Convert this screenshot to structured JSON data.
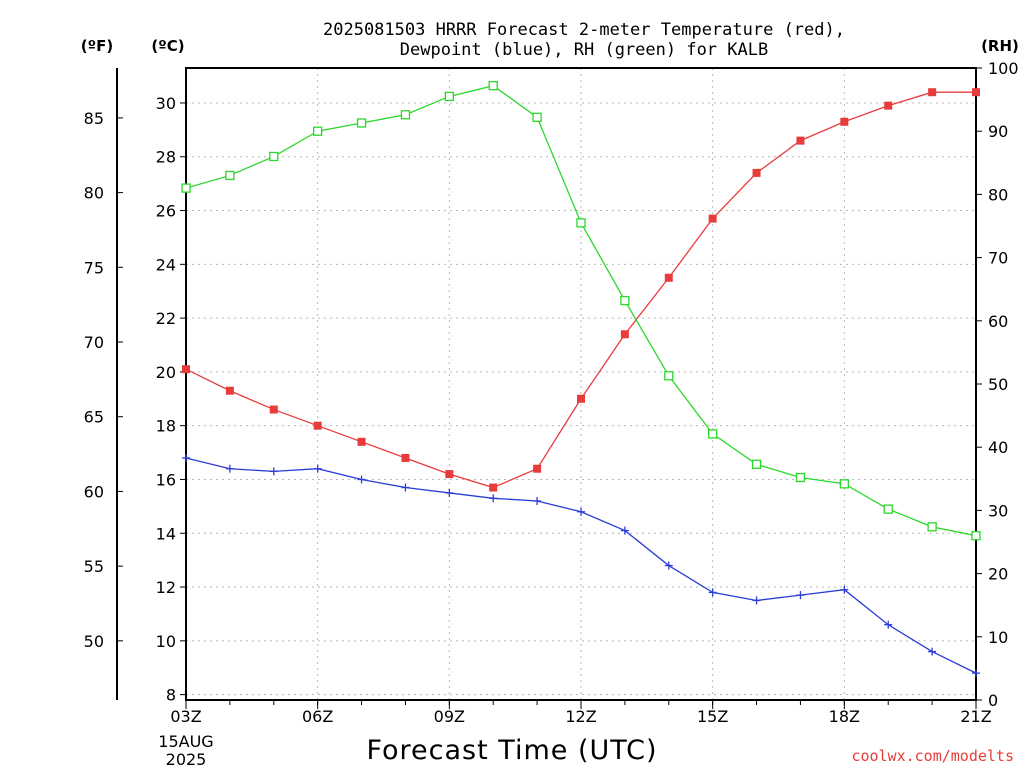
{
  "chart_data": {
    "type": "line",
    "title_line1": "2025081503 HRRR Forecast 2-meter Temperature (red),",
    "title_line2": "Dewpoint (blue), RH (green) for KALB",
    "xlabel": "Forecast Time (UTC)",
    "credit": "coolwx.com/modelts",
    "x_hours": [
      3,
      4,
      5,
      6,
      7,
      8,
      9,
      10,
      11,
      12,
      13,
      14,
      15,
      16,
      17,
      18,
      19,
      20,
      21
    ],
    "x_ticks": [
      {
        "hour": 3,
        "label": "03Z"
      },
      {
        "hour": 6,
        "label": "06Z"
      },
      {
        "hour": 9,
        "label": "09Z"
      },
      {
        "hour": 12,
        "label": "12Z"
      },
      {
        "hour": 15,
        "label": "15Z"
      },
      {
        "hour": 18,
        "label": "18Z"
      },
      {
        "hour": 21,
        "label": "21Z"
      }
    ],
    "date_label_line1": "15AUG",
    "date_label_line2": "2025",
    "xlim": [
      3,
      21
    ],
    "left_axis_c": {
      "unit_label": "(ºC)",
      "range": [
        7.8,
        31.3
      ],
      "ticks": [
        8,
        10,
        12,
        14,
        16,
        18,
        20,
        22,
        24,
        26,
        28,
        30
      ]
    },
    "left_axis_f": {
      "unit_label": "(ºF)",
      "ticks": [
        50,
        55,
        60,
        65,
        70,
        75,
        80,
        85
      ]
    },
    "right_axis_rh": {
      "unit_label": "(RH)",
      "range": [
        0,
        100
      ],
      "ticks": [
        0,
        10,
        20,
        30,
        40,
        50,
        60,
        70,
        80,
        90,
        100
      ]
    },
    "grid": true,
    "series": [
      {
        "name": "Temperature",
        "color": "#e83c3c",
        "marker": "filled-square",
        "axis": "celsius",
        "values": [
          20.1,
          19.3,
          18.6,
          18.0,
          17.4,
          16.8,
          16.2,
          15.7,
          16.4,
          19.0,
          21.4,
          23.5,
          25.7,
          27.4,
          28.6,
          29.3,
          29.9,
          30.4,
          30.4
        ]
      },
      {
        "name": "Dewpoint",
        "color": "#2a3cd8",
        "marker": "plus",
        "axis": "celsius",
        "values": [
          16.8,
          16.4,
          16.3,
          16.4,
          16.0,
          15.7,
          15.5,
          15.3,
          15.2,
          14.8,
          14.1,
          12.8,
          11.8,
          11.5,
          11.7,
          11.9,
          10.6,
          9.6,
          8.8
        ]
      },
      {
        "name": "RH",
        "color": "#2ad82a",
        "marker": "open-square",
        "axis": "rh",
        "values": [
          81,
          83,
          86,
          90,
          91.3,
          92.6,
          95.5,
          97.2,
          92.2,
          75.5,
          63.2,
          51.3,
          42.1,
          37.3,
          35.2,
          34.2,
          30.2,
          27.4,
          26.0
        ]
      }
    ]
  }
}
